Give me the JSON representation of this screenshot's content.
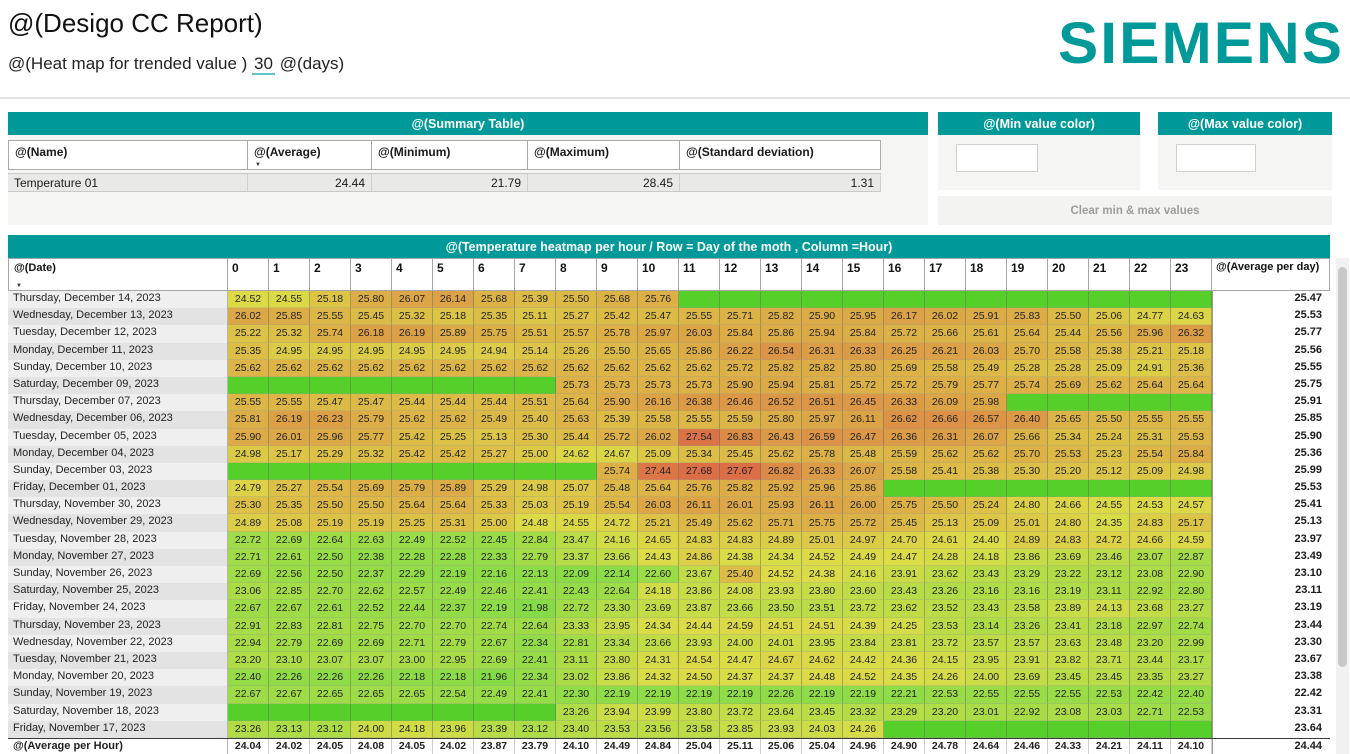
{
  "header": {
    "title": "@(Desigo CC Report)",
    "subtitle_prefix": "@(Heat map for trended value )",
    "subtitle_days": "30",
    "subtitle_suffix": "@(days)",
    "logo_text": "SIEMENS"
  },
  "colors": {
    "accent_teal": "#009999",
    "empty_cell_green": "hsl(104, 66%, 49%)",
    "panel_gray": "#f5f5f3"
  },
  "summary": {
    "title": "@(Summary Table)",
    "columns": [
      "@(Name)",
      "@(Average)",
      "@(Minimum)",
      "@(Maximum)",
      "@(Standard deviation)"
    ],
    "row": {
      "name": "Temperature 01",
      "average": "24.44",
      "minimum": "21.79",
      "maximum": "28.45",
      "stddev": "1.31"
    }
  },
  "controls": {
    "min_color_title": "@(Min value color)",
    "max_color_title": "@(Max value color)",
    "clear_button_label": "Clear min & max values"
  },
  "heatmap": {
    "title": "@(Temperature heatmap per hour / Row = Day of the moth , Column =Hour)",
    "date_header": "@(Date)",
    "avg_header": "@(Average per day)",
    "hour_headers": [
      "0",
      "1",
      "2",
      "3",
      "4",
      "5",
      "6",
      "7",
      "8",
      "9",
      "10",
      "11",
      "12",
      "13",
      "14",
      "15",
      "16",
      "17",
      "18",
      "19",
      "20",
      "21",
      "22",
      "23"
    ],
    "value_min": 21.79,
    "value_max": 28.45,
    "color_scale": {
      "hue_at_min": 97,
      "hue_at_max": 5,
      "saturation": 68,
      "lightness": 57
    },
    "rows": [
      {
        "date": "Thursday, December 14, 2023",
        "avg": "25.47",
        "values": [
          "24.52",
          "24.55",
          "25.18",
          "25.80",
          "26.07",
          "26.14",
          "25.68",
          "25.39",
          "25.50",
          "25.68",
          "25.76",
          null,
          null,
          null,
          null,
          null,
          null,
          null,
          null,
          null,
          null,
          null,
          null,
          null
        ]
      },
      {
        "date": "Wednesday, December 13, 2023",
        "avg": "25.53",
        "values": [
          "26.02",
          "25.85",
          "25.55",
          "25.45",
          "25.32",
          "25.18",
          "25.35",
          "25.11",
          "25.27",
          "25.42",
          "25.47",
          "25.55",
          "25.71",
          "25.82",
          "25.90",
          "25.95",
          "26.17",
          "26.02",
          "25.91",
          "25.83",
          "25.50",
          "25.06",
          "24.77",
          "24.63"
        ]
      },
      {
        "date": "Tuesday, December 12, 2023",
        "avg": "25.77",
        "values": [
          "25.22",
          "25.32",
          "25.74",
          "26.18",
          "26.19",
          "25.89",
          "25.75",
          "25.51",
          "25.57",
          "25.78",
          "25.97",
          "26.03",
          "25.84",
          "25.86",
          "25.94",
          "25.84",
          "25.72",
          "25.66",
          "25.61",
          "25.64",
          "25.44",
          "25.56",
          "25.96",
          "26.32"
        ]
      },
      {
        "date": "Monday, December 11, 2023",
        "avg": "25.56",
        "values": [
          "25.35",
          "24.95",
          "24.95",
          "24.95",
          "24.95",
          "24.95",
          "24.94",
          "25.14",
          "25.26",
          "25.50",
          "25.65",
          "25.86",
          "26.22",
          "26.54",
          "26.31",
          "26.33",
          "26.25",
          "26.21",
          "26.03",
          "25.70",
          "25.58",
          "25.38",
          "25.21",
          "25.18"
        ]
      },
      {
        "date": "Sunday, December 10, 2023",
        "avg": "25.55",
        "values": [
          "25.62",
          "25.62",
          "25.62",
          "25.62",
          "25.62",
          "25.62",
          "25.62",
          "25.62",
          "25.62",
          "25.62",
          "25.62",
          "25.62",
          "25.72",
          "25.82",
          "25.82",
          "25.80",
          "25.69",
          "25.58",
          "25.49",
          "25.28",
          "25.28",
          "25.09",
          "24.91",
          "25.36"
        ]
      },
      {
        "date": "Saturday, December 09, 2023",
        "avg": "25.75",
        "values": [
          null,
          null,
          null,
          null,
          null,
          null,
          null,
          null,
          "25.73",
          "25.73",
          "25.73",
          "25.73",
          "25.90",
          "25.94",
          "25.81",
          "25.72",
          "25.72",
          "25.79",
          "25.77",
          "25.74",
          "25.69",
          "25.62",
          "25.64",
          "25.64"
        ]
      },
      {
        "date": "Thursday, December 07, 2023",
        "avg": "25.91",
        "values": [
          "25.55",
          "25.55",
          "25.47",
          "25.47",
          "25.44",
          "25.44",
          "25.44",
          "25.51",
          "25.64",
          "25.90",
          "26.16",
          "26.38",
          "26.46",
          "26.52",
          "26.51",
          "26.45",
          "26.33",
          "26.09",
          "25.98",
          null,
          null,
          null,
          null,
          null
        ]
      },
      {
        "date": "Wednesday, December 06, 2023",
        "avg": "25.85",
        "values": [
          "25.81",
          "26.19",
          "26.23",
          "25.79",
          "25.62",
          "25.62",
          "25.49",
          "25.40",
          "25.63",
          "25.39",
          "25.58",
          "25.55",
          "25.59",
          "25.80",
          "25.97",
          "26.11",
          "26.62",
          "26.66",
          "26.57",
          "26.40",
          "25.65",
          "25.50",
          "25.55",
          "25.55"
        ]
      },
      {
        "date": "Tuesday, December 05, 2023",
        "avg": "25.90",
        "values": [
          "25.90",
          "26.01",
          "25.96",
          "25.77",
          "25.42",
          "25.25",
          "25.13",
          "25.30",
          "25.44",
          "25.72",
          "26.02",
          "27.54",
          "26.83",
          "26.43",
          "26.59",
          "26.47",
          "26.36",
          "26.31",
          "26.07",
          "25.66",
          "25.34",
          "25.24",
          "25.31",
          "25.53"
        ]
      },
      {
        "date": "Monday, December 04, 2023",
        "avg": "25.36",
        "values": [
          "24.98",
          "25.17",
          "25.29",
          "25.32",
          "25.42",
          "25.42",
          "25.27",
          "25.00",
          "24.62",
          "24.67",
          "25.09",
          "25.34",
          "25.45",
          "25.62",
          "25.78",
          "25.48",
          "25.59",
          "25.62",
          "25.62",
          "25.70",
          "25.53",
          "25.23",
          "25.54",
          "25.84"
        ]
      },
      {
        "date": "Sunday, December 03, 2023",
        "avg": "25.99",
        "values": [
          null,
          null,
          null,
          null,
          null,
          null,
          null,
          null,
          null,
          "25.74",
          "27.44",
          "27.68",
          "27.67",
          "26.82",
          "26.33",
          "26.07",
          "25.58",
          "25.41",
          "25.38",
          "25.30",
          "25.20",
          "25.12",
          "25.09",
          "24.98"
        ]
      },
      {
        "date": "Friday, December 01, 2023",
        "avg": "25.53",
        "values": [
          "24.79",
          "25.27",
          "25.54",
          "25.69",
          "25.79",
          "25.89",
          "25.29",
          "24.98",
          "25.07",
          "25.48",
          "25.64",
          "25.76",
          "25.82",
          "25.92",
          "25.96",
          "25.86",
          null,
          null,
          null,
          null,
          null,
          null,
          null,
          null
        ]
      },
      {
        "date": "Thursday, November 30, 2023",
        "avg": "25.41",
        "values": [
          "25.30",
          "25.35",
          "25.50",
          "25.50",
          "25.64",
          "25.64",
          "25.33",
          "25.03",
          "25.19",
          "25.54",
          "26.03",
          "26.11",
          "26.01",
          "25.93",
          "26.11",
          "26.00",
          "25.75",
          "25.50",
          "25.24",
          "24.80",
          "24.66",
          "24.55",
          "24.53",
          "24.57"
        ]
      },
      {
        "date": "Wednesday, November 29, 2023",
        "avg": "25.13",
        "values": [
          "24.89",
          "25.08",
          "25.19",
          "25.19",
          "25.25",
          "25.31",
          "25.00",
          "24.48",
          "24.55",
          "24.72",
          "25.21",
          "25.49",
          "25.62",
          "25.71",
          "25.75",
          "25.72",
          "25.45",
          "25.13",
          "25.09",
          "25.01",
          "24.80",
          "24.35",
          "24.83",
          "25.17"
        ]
      },
      {
        "date": "Tuesday, November 28, 2023",
        "avg": "23.97",
        "values": [
          "22.72",
          "22.69",
          "22.64",
          "22.63",
          "22.49",
          "22.52",
          "22.45",
          "22.84",
          "23.47",
          "24.16",
          "24.65",
          "24.83",
          "24.83",
          "24.89",
          "25.01",
          "24.97",
          "24.70",
          "24.61",
          "24.40",
          "24.89",
          "24.83",
          "24.72",
          "24.66",
          "24.59"
        ]
      },
      {
        "date": "Monday, November 27, 2023",
        "avg": "23.49",
        "values": [
          "22.71",
          "22.61",
          "22.50",
          "22.38",
          "22.28",
          "22.28",
          "22.33",
          "22.79",
          "23.37",
          "23.66",
          "24.43",
          "24.86",
          "24.38",
          "24.34",
          "24.52",
          "24.49",
          "24.47",
          "24.28",
          "24.18",
          "23.86",
          "23.69",
          "23.46",
          "23.07",
          "22.87"
        ]
      },
      {
        "date": "Sunday, November 26, 2023",
        "avg": "23.10",
        "values": [
          "22.69",
          "22.56",
          "22.50",
          "22.37",
          "22.29",
          "22.19",
          "22.16",
          "22.13",
          "22.09",
          "22.14",
          "22.60",
          "23.67",
          "25.40",
          "24.52",
          "24.38",
          "24.16",
          "23.91",
          "23.62",
          "23.43",
          "23.29",
          "23.22",
          "23.12",
          "23.08",
          "22.90"
        ]
      },
      {
        "date": "Saturday, November 25, 2023",
        "avg": "23.11",
        "values": [
          "23.06",
          "22.85",
          "22.70",
          "22.62",
          "22.57",
          "22.49",
          "22.46",
          "22.41",
          "22.43",
          "22.64",
          "24.18",
          "23.86",
          "24.08",
          "23.93",
          "23.80",
          "23.60",
          "23.43",
          "23.26",
          "23.16",
          "23.16",
          "23.19",
          "23.11",
          "22.92",
          "22.80"
        ]
      },
      {
        "date": "Friday, November 24, 2023",
        "avg": "23.19",
        "values": [
          "22.67",
          "22.67",
          "22.61",
          "22.52",
          "22.44",
          "22.37",
          "22.19",
          "21.98",
          "22.72",
          "23.30",
          "23.69",
          "23.87",
          "23.66",
          "23.50",
          "23.51",
          "23.72",
          "23.62",
          "23.52",
          "23.43",
          "23.58",
          "23.89",
          "24.13",
          "23.68",
          "23.27"
        ]
      },
      {
        "date": "Thursday, November 23, 2023",
        "avg": "23.44",
        "values": [
          "22.91",
          "22.83",
          "22.81",
          "22.75",
          "22.70",
          "22.70",
          "22.74",
          "22.64",
          "23.33",
          "23.95",
          "24.34",
          "24.44",
          "24.59",
          "24.51",
          "24.51",
          "24.39",
          "24.25",
          "23.53",
          "23.14",
          "23.26",
          "23.41",
          "23.18",
          "22.97",
          "22.74"
        ]
      },
      {
        "date": "Wednesday, November 22, 2023",
        "avg": "23.30",
        "values": [
          "22.94",
          "22.79",
          "22.69",
          "22.69",
          "22.71",
          "22.79",
          "22.67",
          "22.34",
          "22.81",
          "23.34",
          "23.66",
          "23.93",
          "24.00",
          "24.01",
          "23.95",
          "23.84",
          "23.81",
          "23.72",
          "23.57",
          "23.57",
          "23.63",
          "23.48",
          "23.20",
          "22.99"
        ]
      },
      {
        "date": "Tuesday, November 21, 2023",
        "avg": "23.67",
        "values": [
          "23.20",
          "23.10",
          "23.07",
          "23.07",
          "23.00",
          "22.95",
          "22.69",
          "22.41",
          "23.11",
          "23.80",
          "24.31",
          "24.54",
          "24.47",
          "24.67",
          "24.62",
          "24.42",
          "24.36",
          "24.15",
          "23.95",
          "23.91",
          "23.82",
          "23.71",
          "23.44",
          "23.17"
        ]
      },
      {
        "date": "Monday, November 20, 2023",
        "avg": "23.38",
        "values": [
          "22.40",
          "22.26",
          "22.26",
          "22.26",
          "22.18",
          "22.18",
          "21.96",
          "22.34",
          "23.02",
          "23.86",
          "24.32",
          "24.50",
          "24.37",
          "24.37",
          "24.48",
          "24.52",
          "24.35",
          "24.26",
          "24.00",
          "23.69",
          "23.45",
          "23.45",
          "23.35",
          "23.27"
        ]
      },
      {
        "date": "Sunday, November 19, 2023",
        "avg": "22.42",
        "values": [
          "22.67",
          "22.67",
          "22.65",
          "22.65",
          "22.65",
          "22.54",
          "22.49",
          "22.41",
          "22.30",
          "22.19",
          "22.19",
          "22.19",
          "22.19",
          "22.26",
          "22.19",
          "22.19",
          "22.21",
          "22.53",
          "22.55",
          "22.55",
          "22.55",
          "22.53",
          "22.42",
          "22.40"
        ]
      },
      {
        "date": "Saturday, November 18, 2023",
        "avg": "23.31",
        "values": [
          null,
          null,
          null,
          null,
          null,
          null,
          null,
          null,
          "23.26",
          "23.94",
          "23.99",
          "23.80",
          "23.72",
          "23.64",
          "23.45",
          "23.32",
          "23.29",
          "23.20",
          "23.01",
          "22.92",
          "23.08",
          "23.03",
          "22.71",
          "22.53"
        ]
      },
      {
        "date": "Friday, November 17, 2023",
        "avg": "23.64",
        "values": [
          "23.26",
          "23.13",
          "23.12",
          "24.00",
          "24.18",
          "23.96",
          "23.39",
          "23.12",
          "23.40",
          "23.53",
          "23.56",
          "23.58",
          "23.85",
          "23.93",
          "24.03",
          "24.26",
          null,
          null,
          null,
          null,
          null,
          null,
          null,
          null
        ]
      }
    ],
    "footer": {
      "label": "@(Average per Hour)",
      "values": [
        "24.04",
        "24.02",
        "24.05",
        "24.08",
        "24.05",
        "24.02",
        "23.87",
        "23.79",
        "24.10",
        "24.49",
        "24.84",
        "25.04",
        "25.11",
        "25.06",
        "25.04",
        "24.96",
        "24.90",
        "24.78",
        "24.64",
        "24.46",
        "24.33",
        "24.21",
        "24.11",
        "24.10"
      ],
      "avg": "24.44"
    }
  }
}
